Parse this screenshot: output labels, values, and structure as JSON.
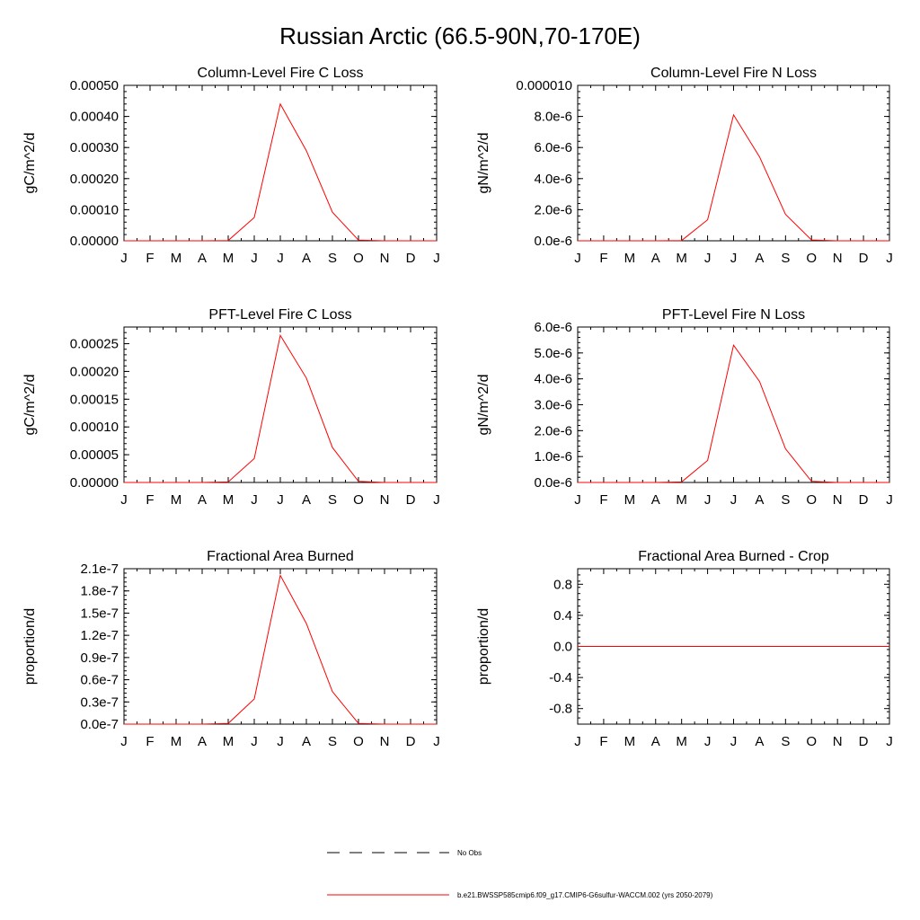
{
  "figure": {
    "title": "Russian Arctic (66.5-90N,70-170E)"
  },
  "legend": [
    {
      "label": "No Obs",
      "color": "#000000",
      "style": "dashed"
    },
    {
      "label": "b.e21.BWSSP585cmip6.f09_g17.CMIP6-G6sulfur-WACCM.002 (yrs 2050-2079)",
      "color": "#ff0000",
      "style": "solid"
    }
  ],
  "chart_data": [
    {
      "type": "line",
      "title": "Column-Level Fire C Loss",
      "ylabel": "gC/m^2/d",
      "categories": [
        "J",
        "F",
        "M",
        "A",
        "M",
        "J",
        "J",
        "A",
        "S",
        "O",
        "N",
        "D",
        "J"
      ],
      "ylim": [
        0,
        0.0005
      ],
      "yticks": [
        0,
        0.0001,
        0.0002,
        0.0003,
        0.0004,
        0.0005
      ],
      "ytick_labels": [
        "0.00000",
        "0.00010",
        "0.00020",
        "0.00030",
        "0.00040",
        "0.00050"
      ],
      "series": [
        {
          "values": [
            0,
            0,
            0,
            0,
            1e-06,
            7.5e-05,
            0.00044,
            0.00029,
            9.2e-05,
            2e-06,
            0,
            0,
            0
          ],
          "color": "#ff0000"
        }
      ]
    },
    {
      "type": "line",
      "title": "Column-Level Fire N Loss",
      "ylabel": "gN/m^2/d",
      "categories": [
        "J",
        "F",
        "M",
        "A",
        "M",
        "J",
        "J",
        "A",
        "S",
        "O",
        "N",
        "D",
        "J"
      ],
      "ylim": [
        0,
        1e-05
      ],
      "yticks": [
        0,
        2e-06,
        4e-06,
        6e-06,
        8e-06,
        1e-05
      ],
      "ytick_labels": [
        "0.0e-6",
        "2.0e-6",
        "4.0e-6",
        "6.0e-6",
        "8.0e-6",
        "0.000010"
      ],
      "series": [
        {
          "values": [
            0,
            0,
            0,
            0,
            2e-08,
            1.35e-06,
            8.1e-06,
            5.4e-06,
            1.7e-06,
            5e-08,
            0,
            0,
            0
          ],
          "color": "#ff0000"
        }
      ]
    },
    {
      "type": "line",
      "title": "PFT-Level Fire C Loss",
      "ylabel": "gC/m^2/d",
      "categories": [
        "J",
        "F",
        "M",
        "A",
        "M",
        "J",
        "J",
        "A",
        "S",
        "O",
        "N",
        "D",
        "J"
      ],
      "ylim": [
        0,
        0.00028
      ],
      "yticks": [
        0,
        5e-05,
        0.0001,
        0.00015,
        0.0002,
        0.00025
      ],
      "ytick_labels": [
        "0.00000",
        "0.00005",
        "0.00010",
        "0.00015",
        "0.00020",
        "0.00025"
      ],
      "series": [
        {
          "values": [
            0,
            0,
            0,
            0,
            1e-06,
            4.3e-05,
            0.000265,
            0.000188,
            6.3e-05,
            2e-06,
            0,
            0,
            0
          ],
          "color": "#ff0000"
        }
      ]
    },
    {
      "type": "line",
      "title": "PFT-Level Fire N Loss",
      "ylabel": "gN/m^2/d",
      "categories": [
        "J",
        "F",
        "M",
        "A",
        "M",
        "J",
        "J",
        "A",
        "S",
        "O",
        "N",
        "D",
        "J"
      ],
      "ylim": [
        0,
        6e-06
      ],
      "yticks": [
        0,
        1e-06,
        2e-06,
        3e-06,
        4e-06,
        5e-06,
        6e-06
      ],
      "ytick_labels": [
        "0.0e-6",
        "1.0e-6",
        "2.0e-6",
        "3.0e-6",
        "4.0e-6",
        "5.0e-6",
        "6.0e-6"
      ],
      "series": [
        {
          "values": [
            0,
            0,
            0,
            0,
            2e-08,
            8.5e-07,
            5.3e-06,
            3.9e-06,
            1.3e-06,
            4e-08,
            0,
            0,
            0
          ],
          "color": "#ff0000"
        }
      ]
    },
    {
      "type": "line",
      "title": "Fractional Area Burned",
      "ylabel": "proportion/d",
      "categories": [
        "J",
        "F",
        "M",
        "A",
        "M",
        "J",
        "J",
        "A",
        "S",
        "O",
        "N",
        "D",
        "J"
      ],
      "ylim": [
        0,
        2.1e-07
      ],
      "yticks": [
        0,
        3e-08,
        6e-08,
        9e-08,
        1.2e-07,
        1.5e-07,
        1.8e-07,
        2.1e-07
      ],
      "ytick_labels": [
        "0.0e-7",
        "0.3e-7",
        "0.6e-7",
        "0.9e-7",
        "1.2e-7",
        "1.5e-7",
        "1.8e-7",
        "2.1e-7"
      ],
      "series": [
        {
          "values": [
            0,
            0,
            0,
            0,
            1e-09,
            3.4e-08,
            2.01e-07,
            1.36e-07,
            4.4e-08,
            1e-09,
            0,
            0,
            0
          ],
          "color": "#ff0000"
        }
      ]
    },
    {
      "type": "line",
      "title": "Fractional Area Burned - Crop",
      "ylabel": "proportion/d",
      "categories": [
        "J",
        "F",
        "M",
        "A",
        "M",
        "J",
        "J",
        "A",
        "S",
        "O",
        "N",
        "D",
        "J"
      ],
      "ylim": [
        -1,
        1
      ],
      "yticks": [
        -0.8,
        -0.4,
        0,
        0.4,
        0.8
      ],
      "ytick_labels": [
        "-0.8",
        "-0.4",
        "0.0",
        "0.4",
        "0.8"
      ],
      "series": [
        {
          "values": [
            0,
            0,
            0,
            0,
            0,
            0,
            0,
            0,
            0,
            0,
            0,
            0,
            0
          ],
          "color": "#ff0000"
        }
      ]
    }
  ]
}
